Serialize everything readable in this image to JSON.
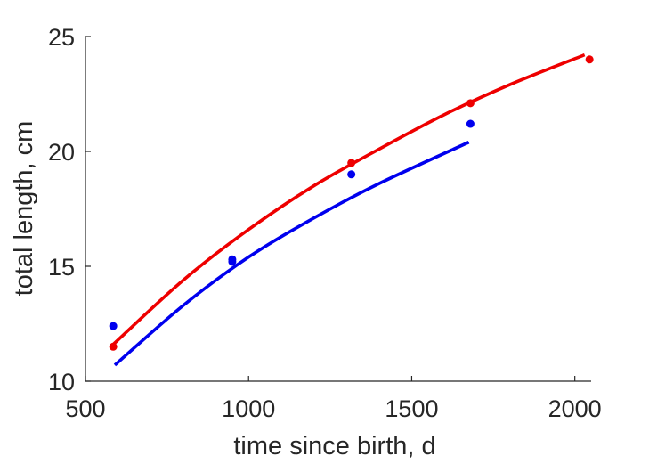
{
  "chart_data": {
    "type": "scatter",
    "xlabel": "time since birth, d",
    "ylabel": "total length, cm",
    "xlim": [
      500,
      2050
    ],
    "ylim": [
      10,
      25
    ],
    "xticks": [
      500,
      1000,
      1500,
      2000
    ],
    "yticks": [
      10,
      15,
      20,
      25
    ],
    "grid": false,
    "series": [
      {
        "color": "#0000ee",
        "points": [
          {
            "x": 585,
            "y": 12.4
          },
          {
            "x": 950,
            "y": 15.3
          },
          {
            "x": 950,
            "y": 15.2
          },
          {
            "x": 1315,
            "y": 19.0
          },
          {
            "x": 1680,
            "y": 21.2
          }
        ],
        "fit": [
          {
            "x": 590,
            "y": 10.7
          },
          {
            "x": 800,
            "y": 13.3
          },
          {
            "x": 1000,
            "y": 15.4
          },
          {
            "x": 1200,
            "y": 17.1
          },
          {
            "x": 1400,
            "y": 18.6
          },
          {
            "x": 1675,
            "y": 20.4
          }
        ]
      },
      {
        "color": "#ee0000",
        "points": [
          {
            "x": 585,
            "y": 11.5
          },
          {
            "x": 1315,
            "y": 19.5
          },
          {
            "x": 1680,
            "y": 22.1
          },
          {
            "x": 2045,
            "y": 24.0
          }
        ],
        "fit": [
          {
            "x": 585,
            "y": 11.6
          },
          {
            "x": 800,
            "y": 14.4
          },
          {
            "x": 1000,
            "y": 16.6
          },
          {
            "x": 1200,
            "y": 18.5
          },
          {
            "x": 1400,
            "y": 20.1
          },
          {
            "x": 1600,
            "y": 21.6
          },
          {
            "x": 1800,
            "y": 22.9
          },
          {
            "x": 2030,
            "y": 24.2
          }
        ]
      }
    ]
  }
}
